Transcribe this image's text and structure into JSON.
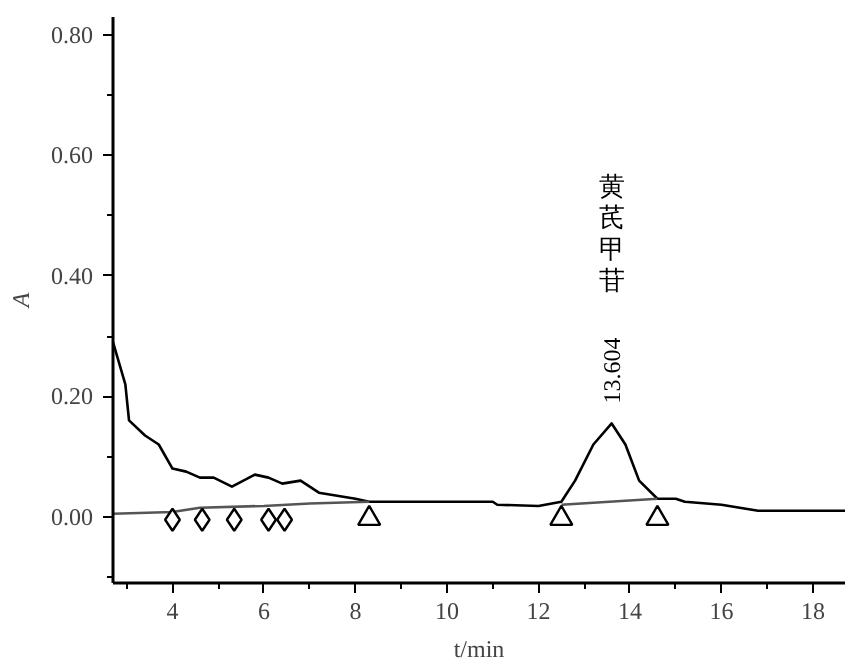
{
  "chart_data": {
    "type": "line",
    "xlabel": "t/min",
    "ylabel": "A",
    "xlim": [
      2.7,
      18.7
    ],
    "ylim": [
      -0.11,
      0.83
    ],
    "xticks": [
      4,
      6,
      8,
      10,
      12,
      14,
      16,
      18
    ],
    "yticks": [
      {
        "value": 0,
        "label": "0.00"
      },
      {
        "value": 0.2,
        "label": "0.20"
      },
      {
        "value": 0.4,
        "label": "0.40"
      },
      {
        "value": 0.6,
        "label": "0.60"
      },
      {
        "value": 0.8,
        "label": "0.80"
      }
    ],
    "grid": false,
    "series": [
      {
        "color": "#000000",
        "x": [
          2.7,
          2.97,
          3.05,
          3.4,
          3.7,
          4.0,
          4.3,
          4.6,
          4.9,
          5.3,
          5.8,
          6.1,
          6.4,
          6.8,
          7.2,
          7.6,
          8.0,
          8.3,
          10,
          11,
          11.1,
          12,
          12.5,
          12.8,
          13.2,
          13.6,
          13.9,
          14.2,
          14.6,
          15,
          15.2,
          16,
          16.8,
          18.7
        ],
        "values": [
          0.29,
          0.22,
          0.16,
          0.135,
          0.12,
          0.08,
          0.075,
          0.065,
          0.065,
          0.05,
          0.07,
          0.065,
          0.055,
          0.06,
          0.04,
          0.035,
          0.03,
          0.025,
          0.025,
          0.025,
          0.02,
          0.018,
          0.025,
          0.06,
          0.12,
          0.155,
          0.12,
          0.06,
          0.03,
          0.03,
          0.025,
          0.02,
          0.01,
          0.01
        ]
      },
      {
        "color": "#555555",
        "x": [
          2.7,
          4.0,
          4.6,
          6.0,
          7.0,
          8.3
        ],
        "values": [
          0.005,
          0.008,
          0.015,
          0.018,
          0.022,
          0.025
        ]
      },
      {
        "color": "#555555",
        "x": [
          12.5,
          14.6
        ],
        "values": [
          0.02,
          0.03
        ]
      },
      {
        "type": "scatter",
        "marker": "diamond",
        "color": "#000000",
        "x": [
          4.0,
          4.65,
          5.35,
          6.1,
          6.45
        ],
        "values": [
          -0.005,
          -0.005,
          -0.005,
          -0.005,
          -0.005
        ]
      },
      {
        "type": "scatter",
        "marker": "triangle",
        "color": "#000000",
        "x": [
          8.3,
          12.5,
          14.6
        ],
        "values": [
          -0.003,
          -0.003,
          -0.003
        ]
      }
    ],
    "annotations": [
      {
        "text": "13.604",
        "x": 13.6,
        "y": 0.155
      },
      "黄芪甲苷"
    ]
  }
}
